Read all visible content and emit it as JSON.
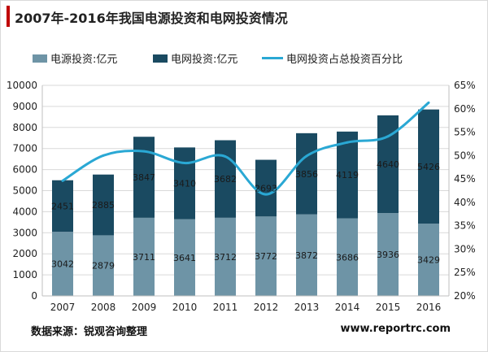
{
  "title": "2007年-2016年我国电源投资和电网投资情况",
  "source": "数据来源：锐观咨询整理",
  "website": "www.reportrc.com",
  "colors": {
    "power": "#6e94a6",
    "grid": "#1a4a61",
    "line": "#2aa8d4",
    "title_accent": "#c00000"
  },
  "chart_data": {
    "type": "bar",
    "stacked": true,
    "categories": [
      "2007",
      "2008",
      "2009",
      "2010",
      "2011",
      "2012",
      "2013",
      "2014",
      "2015",
      "2016"
    ],
    "series": [
      {
        "name": "电源投资:亿元",
        "type": "bar",
        "axis": "left",
        "values": [
          3042,
          2879,
          3711,
          3641,
          3712,
          3772,
          3872,
          3686,
          3936,
          3429
        ]
      },
      {
        "name": "电网投资:亿元",
        "type": "bar",
        "axis": "left",
        "values": [
          2451,
          2885,
          3847,
          3410,
          3682,
          2693,
          3856,
          4119,
          4640,
          5426
        ]
      },
      {
        "name": "电网投资占总投资百分比",
        "type": "line",
        "axis": "right",
        "values": [
          44.6,
          50.0,
          50.9,
          48.4,
          49.8,
          41.7,
          49.9,
          52.8,
          54.1,
          61.3
        ]
      }
    ],
    "left_axis": {
      "min": 0,
      "max": 10000,
      "ticks": [
        0,
        1000,
        2000,
        3000,
        4000,
        5000,
        6000,
        7000,
        8000,
        9000,
        10000
      ]
    },
    "right_axis": {
      "min": 20,
      "max": 65,
      "ticks": [
        "20%",
        "25%",
        "30%",
        "35%",
        "40%",
        "45%",
        "50%",
        "55%",
        "60%",
        "65%"
      ]
    },
    "grid": true,
    "legend_position": "top"
  }
}
